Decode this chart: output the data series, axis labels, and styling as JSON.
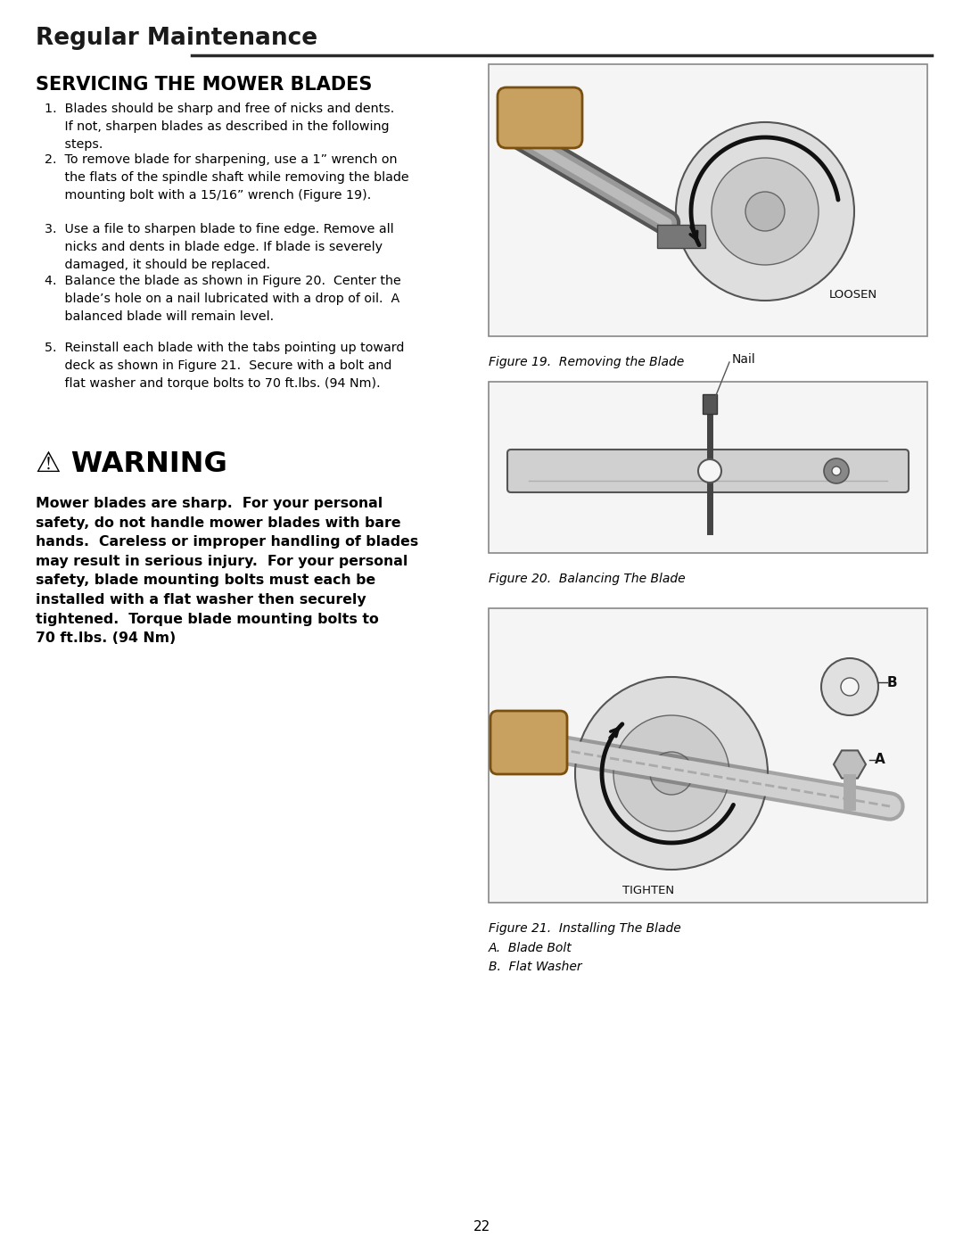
{
  "bg_color": "#ffffff",
  "page_title": "Regular Maintenance",
  "section_title": "SERVICING THE MOWER BLADES",
  "step1": "1.  Blades should be sharp and free of nicks and dents.\n     If not, sharpen blades as described in the following\n     steps.",
  "step2": "2.  To remove blade for sharpening, use a 1” wrench on\n     the flats of the spindle shaft while removing the blade\n     mounting bolt with a 15/16” wrench (Figure 19).",
  "step3": "3.  Use a file to sharpen blade to fine edge. Remove all\n     nicks and dents in blade edge. If blade is severely\n     damaged, it should be replaced.",
  "step4": "4.  Balance the blade as shown in Figure 20.  Center the\n     blade’s hole on a nail lubricated with a drop of oil.  A\n     balanced blade will remain level.",
  "step5": "5.  Reinstall each blade with the tabs pointing up toward\n     deck as shown in Figure 21.  Secure with a bolt and\n     flat washer and torque bolts to 70 ft.lbs. (94 Nm).",
  "warning_header": "⚠ WARNING",
  "warning_body": "Mower blades are sharp.  For your personal\nsafety, do not handle mower blades with bare\nhands.  Careless or improper handling of blades\nmay result in serious injury.  For your personal\nsafety, blade mounting bolts must each be\ninstalled with a flat washer then securely\ntightened.  Torque blade mounting bolts to\n70 ft.lbs. (94 Nm)",
  "fig19_caption": "Figure 19.  Removing the Blade",
  "fig20_caption": "Figure 20.  Balancing The Blade",
  "fig21_caption": "Figure 21.  Installing The Blade\nA.  Blade Bolt\nB.  Flat Washer",
  "page_number": "22",
  "loosen_label": "LOOSEN",
  "nail_label": "Nail",
  "tighten_label": "TIGHTEN",
  "label_a": "A",
  "label_b": "B"
}
